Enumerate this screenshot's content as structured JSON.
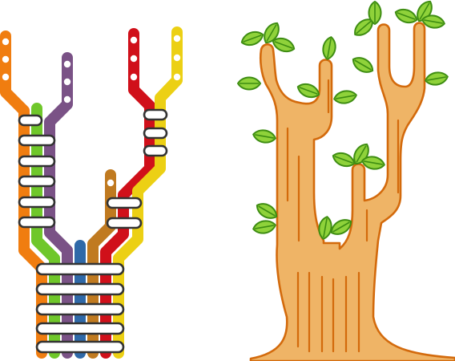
{
  "colors": {
    "background": "#ffffff",
    "line_orange": "#f07d10",
    "line_green": "#6fc72a",
    "line_purple": "#7a5286",
    "line_blue": "#2f69a8",
    "line_brown": "#c07a20",
    "line_red": "#d0101a",
    "line_yellow": "#ecd014",
    "connector_fill": "#ffffff",
    "connector_stroke": "#333333",
    "station_dot": "#ffffff",
    "tree_fill": "#efb466",
    "tree_stroke": "#d36a0c",
    "leaf_fill": "#8fd23a",
    "leaf_stroke": "#3e8d12",
    "leaf_vein": "#3e8d12"
  },
  "left_figure": {
    "name": "transit-line-tree",
    "lines": [
      "orange",
      "green",
      "purple",
      "blue",
      "brown",
      "red",
      "yellow"
    ],
    "stations_on_orange": 3,
    "stations_on_purple": 3,
    "stations_on_red": 3,
    "stations_on_yellow": 3,
    "stations_on_brown": 1,
    "left_connectors": 6,
    "right_connectors": 3,
    "middle_connectors": 2,
    "trunk_connectors": 5
  },
  "right_figure": {
    "name": "tree-illustration",
    "leaf_count": 17
  }
}
